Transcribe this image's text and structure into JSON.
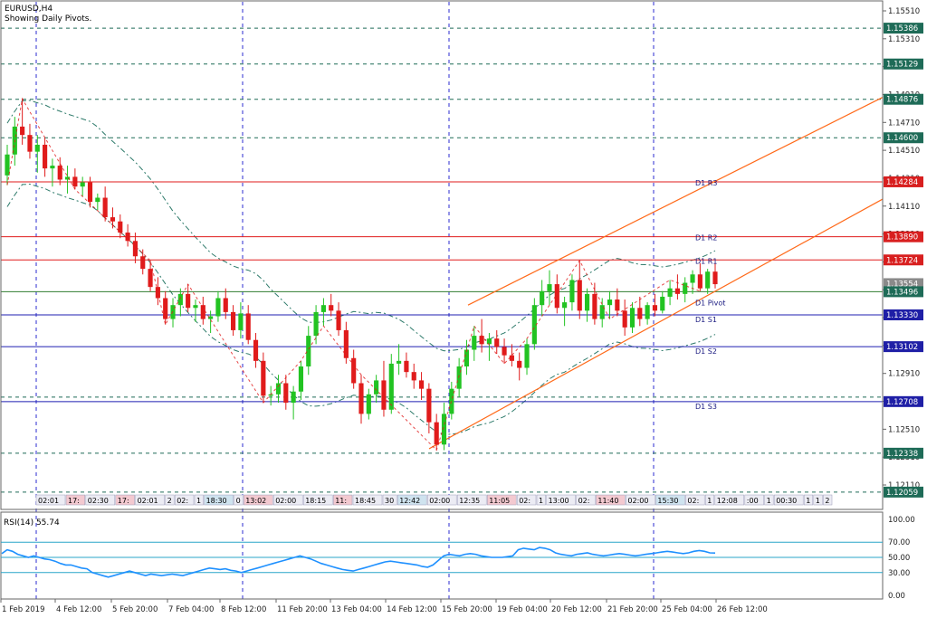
{
  "header": {
    "symbol": "EURUSD,H4",
    "subtitle": "Showing Daily Pivots."
  },
  "colors": {
    "bull": "#22c322",
    "bear": "#e01b1b",
    "resistance": "#e01b1b",
    "support": "#1f1fb0",
    "pivot": "#2f7d2f",
    "channel": "#ff6a1a",
    "bands": "#2d7a6a",
    "rsi": "#1e90ff",
    "grid": "#2b2bd0",
    "price_tag_green": "#1e6b57",
    "price_tag_red": "#d81f1f",
    "price_tag_blue": "#1f1fa6"
  },
  "price_axis": {
    "ticks": [
      "1.15510",
      "1.15310",
      "1.15110",
      "1.14910",
      "1.14710",
      "1.14510",
      "1.14310",
      "1.14110",
      "1.13910",
      "1.13710",
      "1.13510",
      "1.13310",
      "1.13110",
      "1.12910",
      "1.12710",
      "1.12510",
      "1.12310",
      "1.12110"
    ],
    "tags": [
      {
        "text": "1.15386",
        "price": 1.15386,
        "color": "green"
      },
      {
        "text": "1.15129",
        "price": 1.15129,
        "color": "green"
      },
      {
        "text": "1.14876",
        "price": 1.14876,
        "color": "green"
      },
      {
        "text": "1.14600",
        "price": 1.146,
        "color": "green"
      },
      {
        "text": "1.14284",
        "price": 1.14284,
        "color": "red"
      },
      {
        "text": "1.13890",
        "price": 1.1389,
        "color": "red"
      },
      {
        "text": "1.13724",
        "price": 1.13724,
        "color": "red"
      },
      {
        "text": "1.13554",
        "price": 1.13554,
        "color": "gray"
      },
      {
        "text": "1.13496",
        "price": 1.13496,
        "color": "green"
      },
      {
        "text": "1.13330",
        "price": 1.1333,
        "color": "blue"
      },
      {
        "text": "1.13102",
        "price": 1.13102,
        "color": "blue"
      },
      {
        "text": "1.12708",
        "price": 1.12708,
        "color": "blue"
      },
      {
        "text": "1.12338",
        "price": 1.12338,
        "color": "green"
      },
      {
        "text": "1.12059",
        "price": 1.12059,
        "color": "green"
      }
    ]
  },
  "pivots": [
    {
      "label": "D1 R3",
      "price": 1.14284,
      "kind": "resistance"
    },
    {
      "label": "D1 R2",
      "price": 1.1389,
      "kind": "resistance"
    },
    {
      "label": "D1 R1",
      "price": 1.13724,
      "kind": "resistance"
    },
    {
      "label": "D1 Pivot",
      "price": 1.13496,
      "kind": "pivot"
    },
    {
      "label": "D1 S1",
      "price": 1.1333,
      "kind": "support"
    },
    {
      "label": "D1 S2",
      "price": 1.13102,
      "kind": "support"
    },
    {
      "label": "D1 S3",
      "price": 1.12708,
      "kind": "support"
    }
  ],
  "dashed_levels": [
    1.15386,
    1.15129,
    1.14876,
    1.146,
    1.12338,
    1.12059,
    1.1274
  ],
  "time_stamps": [
    "02:01",
    "17:",
    "02:30",
    "17:",
    "02:01",
    "2",
    "02:",
    "1",
    "18:30",
    "0",
    "13:02",
    "02:00",
    "18:15",
    "11:",
    "18:45",
    "30",
    "12:42",
    "02:00",
    "12:35",
    "11:05",
    "02:",
    "1",
    "13:00",
    "02:",
    "11:40",
    "02:00",
    "15:30",
    "02:",
    "1",
    "12:08",
    ":00",
    "1",
    "00:30",
    "1",
    "1",
    "2",
    "02:",
    "1",
    "1",
    "02",
    "17:30",
    "18:30"
  ],
  "rsi": {
    "label": "RSI(14) 55.74",
    "ticks": [
      "100.00",
      "70.00",
      "50.00",
      "30.00",
      "0.00"
    ],
    "levels": [
      70,
      50,
      30
    ],
    "values": [
      55,
      60,
      58,
      54,
      52,
      50,
      52,
      50,
      48,
      47,
      45,
      42,
      40,
      40,
      38,
      36,
      35,
      30,
      28,
      26,
      24,
      26,
      28,
      30,
      32,
      30,
      28,
      26,
      28,
      27,
      26,
      27,
      28,
      27,
      26,
      28,
      30,
      32,
      34,
      36,
      35,
      34,
      35,
      33,
      32,
      30,
      32,
      34,
      36,
      38,
      40,
      42,
      44,
      46,
      48,
      50,
      52,
      50,
      48,
      45,
      42,
      40,
      38,
      36,
      34,
      33,
      32,
      34,
      36,
      38,
      40,
      42,
      44,
      45,
      44,
      43,
      42,
      41,
      40,
      38,
      37,
      40,
      46,
      52,
      54,
      53,
      52,
      54,
      55,
      54,
      52,
      51,
      50,
      50,
      50,
      51,
      52,
      60,
      62,
      61,
      60,
      63,
      62,
      60,
      56,
      54,
      53,
      52,
      54,
      55,
      56,
      54,
      53,
      52,
      53,
      54,
      55,
      54,
      53,
      52,
      53,
      54,
      55,
      56,
      57,
      58,
      57,
      56,
      55,
      56,
      58,
      59,
      58,
      56,
      55.74
    ]
  },
  "time_axis": [
    "1 Feb 2019",
    "4 Feb 12:00",
    "5 Feb 20:00",
    "7 Feb 04:00",
    "8 Feb 12:00",
    "11 Feb 20:00",
    "13 Feb 04:00",
    "14 Feb 12:00",
    "15 Feb 20:00",
    "19 Feb 04:00",
    "20 Feb 12:00",
    "21 Feb 20:00",
    "25 Feb 04:00",
    "26 Feb 12:00"
  ],
  "candles": [
    [
      1.1433,
      1.1455,
      1.1426,
      1.1448
    ],
    [
      1.1448,
      1.1475,
      1.144,
      1.1468
    ],
    [
      1.1468,
      1.1488,
      1.1455,
      1.1462
    ],
    [
      1.1462,
      1.147,
      1.1445,
      1.145
    ],
    [
      1.145,
      1.1462,
      1.1435,
      1.1455
    ],
    [
      1.1455,
      1.146,
      1.1432,
      1.1438
    ],
    [
      1.1438,
      1.1445,
      1.1425,
      1.144
    ],
    [
      1.144,
      1.1446,
      1.1426,
      1.143
    ],
    [
      1.143,
      1.144,
      1.142,
      1.1432
    ],
    [
      1.1432,
      1.1438,
      1.1423,
      1.1425
    ],
    [
      1.1425,
      1.1432,
      1.1418,
      1.1428
    ],
    [
      1.1428,
      1.1432,
      1.141,
      1.1414
    ],
    [
      1.1414,
      1.142,
      1.1408,
      1.1417
    ],
    [
      1.1417,
      1.1425,
      1.14,
      1.1403
    ],
    [
      1.1403,
      1.141,
      1.1395,
      1.14
    ],
    [
      1.14,
      1.1405,
      1.1388,
      1.1392
    ],
    [
      1.1392,
      1.1398,
      1.1382,
      1.1386
    ],
    [
      1.1386,
      1.1392,
      1.137,
      1.1375
    ],
    [
      1.1375,
      1.138,
      1.1362,
      1.1366
    ],
    [
      1.1366,
      1.1372,
      1.135,
      1.1353
    ],
    [
      1.1353,
      1.136,
      1.134,
      1.1345
    ],
    [
      1.1345,
      1.135,
      1.1326,
      1.133
    ],
    [
      1.133,
      1.1345,
      1.1324,
      1.134
    ],
    [
      1.134,
      1.1352,
      1.1332,
      1.1348
    ],
    [
      1.1348,
      1.1355,
      1.1335,
      1.1338
    ],
    [
      1.1338,
      1.1344,
      1.1328,
      1.134
    ],
    [
      1.134,
      1.1346,
      1.1326,
      1.133
    ],
    [
      1.133,
      1.1336,
      1.132,
      1.1332
    ],
    [
      1.1332,
      1.135,
      1.1328,
      1.1345
    ],
    [
      1.1345,
      1.1352,
      1.133,
      1.1335
    ],
    [
      1.1335,
      1.134,
      1.1318,
      1.1322
    ],
    [
      1.1322,
      1.1342,
      1.1316,
      1.1334
    ],
    [
      1.1334,
      1.134,
      1.1312,
      1.1315
    ],
    [
      1.1315,
      1.132,
      1.1295,
      1.13
    ],
    [
      1.13,
      1.1306,
      1.127,
      1.1275
    ],
    [
      1.1275,
      1.1282,
      1.1268,
      1.1276
    ],
    [
      1.1276,
      1.129,
      1.127,
      1.1284
    ],
    [
      1.1284,
      1.129,
      1.1265,
      1.127
    ],
    [
      1.127,
      1.1282,
      1.1258,
      1.1278
    ],
    [
      1.1278,
      1.13,
      1.1272,
      1.1296
    ],
    [
      1.1296,
      1.1325,
      1.129,
      1.1318
    ],
    [
      1.1318,
      1.134,
      1.1312,
      1.1335
    ],
    [
      1.1335,
      1.1345,
      1.1325,
      1.134
    ],
    [
      1.134,
      1.1348,
      1.1332,
      1.1336
    ],
    [
      1.1336,
      1.1342,
      1.1318,
      1.1322
    ],
    [
      1.1322,
      1.1328,
      1.1298,
      1.1302
    ],
    [
      1.1302,
      1.1308,
      1.128,
      1.1284
    ],
    [
      1.1284,
      1.129,
      1.1255,
      1.1262
    ],
    [
      1.1262,
      1.128,
      1.1258,
      1.1276
    ],
    [
      1.1276,
      1.129,
      1.127,
      1.1286
    ],
    [
      1.1286,
      1.13,
      1.126,
      1.1265
    ],
    [
      1.1265,
      1.1305,
      1.1262,
      1.1298
    ],
    [
      1.1298,
      1.1312,
      1.129,
      1.13
    ],
    [
      1.13,
      1.1306,
      1.1288,
      1.1292
    ],
    [
      1.1292,
      1.1298,
      1.128,
      1.1286
    ],
    [
      1.1286,
      1.1292,
      1.1272,
      1.128
    ],
    [
      1.128,
      1.1284,
      1.1248,
      1.1256
    ],
    [
      1.1256,
      1.1262,
      1.1236,
      1.124
    ],
    [
      1.124,
      1.127,
      1.1236,
      1.1262
    ],
    [
      1.1262,
      1.1285,
      1.1258,
      1.128
    ],
    [
      1.128,
      1.1302,
      1.1274,
      1.1296
    ],
    [
      1.1296,
      1.1315,
      1.129,
      1.1308
    ],
    [
      1.1308,
      1.1325,
      1.13,
      1.1318
    ],
    [
      1.1318,
      1.133,
      1.1306,
      1.1312
    ],
    [
      1.1312,
      1.132,
      1.13,
      1.1316
    ],
    [
      1.1316,
      1.1322,
      1.1305,
      1.131
    ],
    [
      1.131,
      1.1316,
      1.1298,
      1.1304
    ],
    [
      1.1304,
      1.1312,
      1.1296,
      1.13
    ],
    [
      1.13,
      1.1306,
      1.1286,
      1.1295
    ],
    [
      1.1295,
      1.1316,
      1.129,
      1.1312
    ],
    [
      1.1312,
      1.1345,
      1.1308,
      1.134
    ],
    [
      1.134,
      1.1358,
      1.1332,
      1.135
    ],
    [
      1.135,
      1.1365,
      1.134,
      1.1355
    ],
    [
      1.1355,
      1.1362,
      1.1334,
      1.1338
    ],
    [
      1.1338,
      1.1346,
      1.1325,
      1.1342
    ],
    [
      1.1342,
      1.1362,
      1.1336,
      1.1358
    ],
    [
      1.1358,
      1.1372,
      1.133,
      1.1336
    ],
    [
      1.1336,
      1.1352,
      1.1328,
      1.1348
    ],
    [
      1.1348,
      1.1356,
      1.1326,
      1.133
    ],
    [
      1.133,
      1.1345,
      1.1324,
      1.134
    ],
    [
      1.134,
      1.135,
      1.133,
      1.1344
    ],
    [
      1.1344,
      1.1352,
      1.1332,
      1.1336
    ],
    [
      1.1336,
      1.1344,
      1.1318,
      1.1324
    ],
    [
      1.1324,
      1.1342,
      1.132,
      1.1338
    ],
    [
      1.1338,
      1.1346,
      1.1325,
      1.133
    ],
    [
      1.133,
      1.1342,
      1.1326,
      1.134
    ],
    [
      1.134,
      1.1348,
      1.1332,
      1.1336
    ],
    [
      1.1336,
      1.135,
      1.1334,
      1.1346
    ],
    [
      1.1346,
      1.1358,
      1.134,
      1.1352
    ],
    [
      1.1352,
      1.1362,
      1.1344,
      1.1348
    ],
    [
      1.1348,
      1.136,
      1.1342,
      1.1356
    ],
    [
      1.1356,
      1.1365,
      1.1348,
      1.1362
    ],
    [
      1.1362,
      1.137,
      1.135,
      1.1352
    ],
    [
      1.1352,
      1.1366,
      1.1348,
      1.1364
    ],
    [
      1.1364,
      1.137,
      1.1352,
      1.1355
    ]
  ]
}
